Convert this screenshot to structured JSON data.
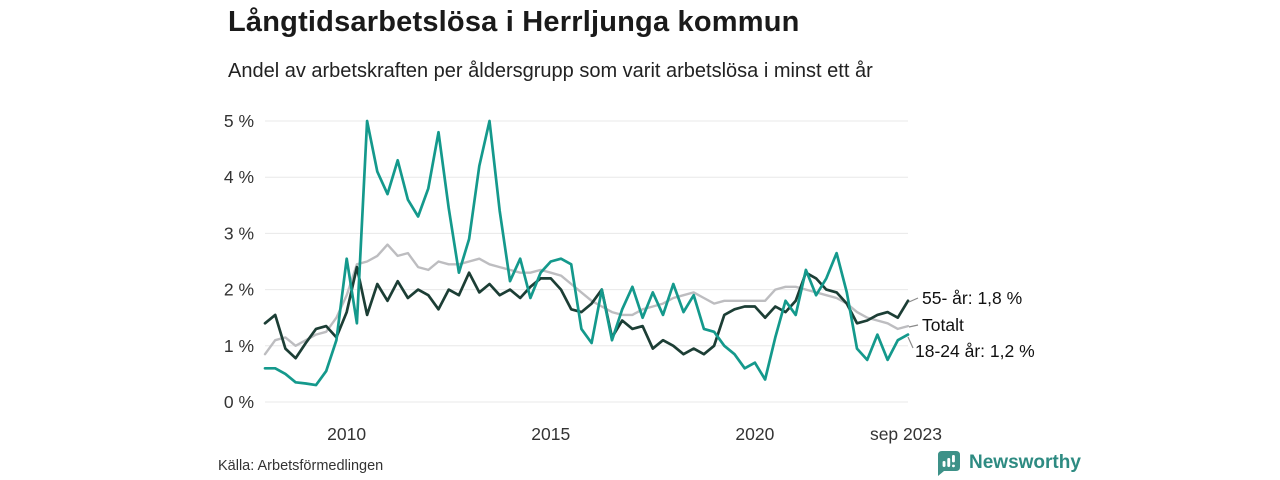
{
  "header": {
    "title": "Långtidsarbetslösa i Herrljunga kommun",
    "subtitle": "Andel av arbetskraften per åldersgrupp som varit arbetslösa i minst ett år"
  },
  "footer": {
    "source": "Källa: Arbetsförmedlingen",
    "brand": "Newsworthy"
  },
  "colors": {
    "brand": "#2e8b82",
    "logo_bubble": "#3d9188",
    "grid": "#e8e8e8",
    "axis_text": "#333333",
    "annotation_connector": "#8a8a8a",
    "series_youth": "#14998c",
    "series_total": "#bdbdc0",
    "series_senior": "#1c3e35"
  },
  "chart_data": {
    "type": "line",
    "title": "Långtidsarbetslösa i Herrljunga kommun",
    "subtitle": "Andel av arbetskraften per åldersgrupp som varit arbetslösa i minst ett år",
    "unit": "%",
    "x_start": 2008.0,
    "x_step": 0.25,
    "x_end": 2023.75,
    "ylim": [
      0,
      5
    ],
    "grid": "horizontal",
    "legend_position": "end-of-line-labels",
    "y_tick_values": [
      0,
      1,
      2,
      3,
      4,
      5
    ],
    "y_tick_labels": [
      "0 %",
      "1 %",
      "2 %",
      "3 %",
      "4 %",
      "5 %"
    ],
    "x_tick_values": [
      2010,
      2015,
      2020,
      2023.7
    ],
    "x_tick_labels": [
      "2010",
      "2015",
      "2020",
      "sep 2023"
    ],
    "series": [
      {
        "name": "Totalt",
        "color": "#bdbdc0",
        "end_label": "Totalt",
        "end_value": 1.35,
        "values": [
          0.85,
          1.1,
          1.15,
          1.0,
          1.1,
          1.2,
          1.25,
          1.5,
          1.9,
          2.45,
          2.5,
          2.6,
          2.8,
          2.6,
          2.65,
          2.4,
          2.35,
          2.5,
          2.45,
          2.45,
          2.5,
          2.55,
          2.45,
          2.4,
          2.35,
          2.3,
          2.3,
          2.35,
          2.3,
          2.25,
          2.1,
          1.95,
          1.8,
          1.7,
          1.6,
          1.55,
          1.55,
          1.65,
          1.7,
          1.75,
          1.85,
          1.9,
          1.95,
          1.85,
          1.75,
          1.8,
          1.8,
          1.8,
          1.8,
          1.8,
          2.0,
          2.05,
          2.05,
          2.0,
          1.95,
          1.9,
          1.85,
          1.75,
          1.6,
          1.5,
          1.45,
          1.4,
          1.3,
          1.35
        ]
      },
      {
        "name": "55- år",
        "color": "#1c3e35",
        "end_label": "55- år: 1,8 %",
        "end_value": 1.8,
        "values": [
          1.4,
          1.55,
          0.95,
          0.78,
          1.05,
          1.3,
          1.35,
          1.15,
          1.6,
          2.4,
          1.55,
          2.1,
          1.8,
          2.15,
          1.85,
          2.0,
          1.9,
          1.65,
          2.0,
          1.9,
          2.3,
          1.95,
          2.1,
          1.9,
          2.0,
          1.85,
          2.05,
          2.2,
          2.2,
          2.0,
          1.65,
          1.6,
          1.75,
          2.0,
          1.15,
          1.45,
          1.3,
          1.35,
          0.95,
          1.1,
          1.0,
          0.85,
          0.95,
          0.85,
          1.0,
          1.55,
          1.65,
          1.7,
          1.7,
          1.5,
          1.7,
          1.6,
          1.8,
          2.3,
          2.2,
          2.0,
          1.95,
          1.75,
          1.4,
          1.45,
          1.55,
          1.6,
          1.5,
          1.8
        ]
      },
      {
        "name": "18-24 år",
        "color": "#14998c",
        "end_label": "18-24 år: 1,2 %",
        "end_value": 1.2,
        "values": [
          0.6,
          0.6,
          0.5,
          0.35,
          0.33,
          0.3,
          0.55,
          1.1,
          2.55,
          1.4,
          5.0,
          4.1,
          3.7,
          4.3,
          3.6,
          3.3,
          3.8,
          4.8,
          3.45,
          2.3,
          2.9,
          4.2,
          5.0,
          3.4,
          2.15,
          2.55,
          1.85,
          2.3,
          2.5,
          2.55,
          2.45,
          1.3,
          1.05,
          2.0,
          1.1,
          1.65,
          2.05,
          1.5,
          1.95,
          1.55,
          2.1,
          1.6,
          1.9,
          1.3,
          1.25,
          1.0,
          0.85,
          0.6,
          0.7,
          0.4,
          1.15,
          1.8,
          1.55,
          2.35,
          1.9,
          2.2,
          2.65,
          1.95,
          0.95,
          0.75,
          1.2,
          0.75,
          1.1,
          1.2
        ]
      }
    ]
  }
}
